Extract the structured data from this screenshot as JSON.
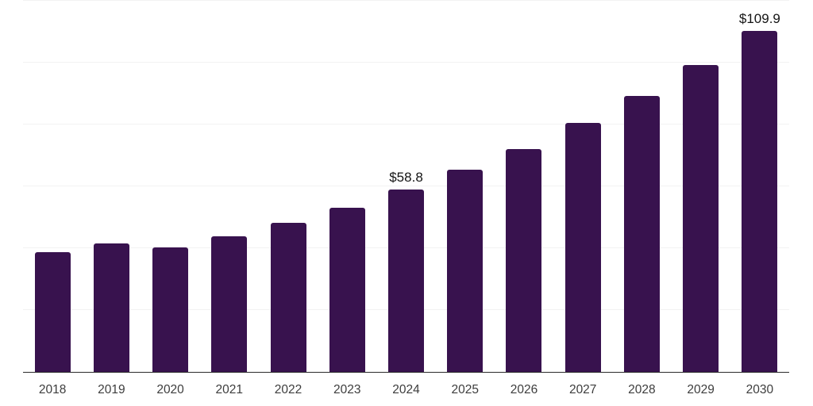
{
  "chart_data": {
    "type": "bar",
    "categories": [
      "2018",
      "2019",
      "2020",
      "2021",
      "2022",
      "2023",
      "2024",
      "2025",
      "2026",
      "2027",
      "2028",
      "2029",
      "2030"
    ],
    "values": [
      38.6,
      41.4,
      40.1,
      43.7,
      48.0,
      52.9,
      58.8,
      65.3,
      71.9,
      80.4,
      89.1,
      98.9,
      109.9
    ],
    "point_labels": [
      "",
      "",
      "",
      "",
      "",
      "",
      "$58.8",
      "",
      "",
      "",
      "",
      "",
      "$109.9"
    ],
    "title": "",
    "xlabel": "",
    "ylabel": "",
    "ylim": [
      0,
      120
    ],
    "gridline_values": [
      20,
      40,
      60,
      80,
      100,
      120
    ],
    "grid": "horizontal-only",
    "legend": "none",
    "y_axis_tick_labels_visible": false,
    "colors": {
      "bar": "#38124E",
      "axis_line": "#2b2b2b",
      "gridline": "#f2f2f2",
      "value_label": "#141414",
      "tick_label": "#3d3d3d",
      "background": "#ffffff"
    }
  }
}
